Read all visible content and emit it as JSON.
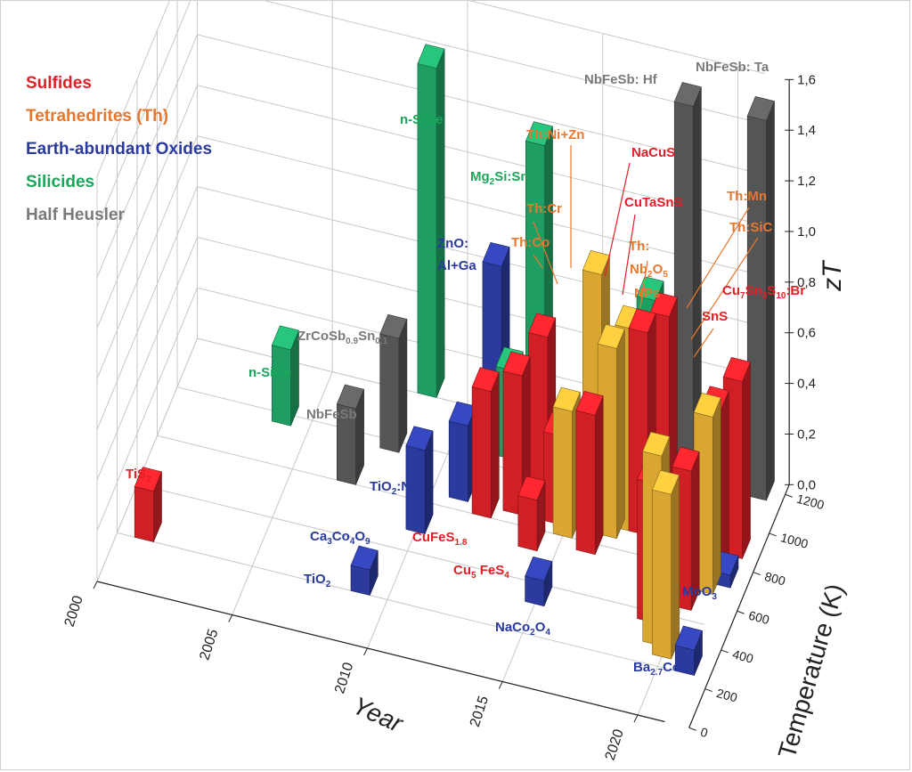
{
  "colors": {
    "sulfides": "#e41e26",
    "tetrahedrites": "#e8772e",
    "oxides": "#2a3aa0",
    "silicides": "#1aa65a",
    "half_heusler": "#7a7a7a",
    "bar_red": "#d11f26",
    "bar_gold": "#d9a632",
    "bar_blue": "#2b3a9c",
    "bar_green": "#1f9e63",
    "bar_gray": "#555555",
    "grid": "#c8c8c8",
    "axis": "#222222"
  },
  "legend": [
    {
      "label": "Sulfides",
      "color": "#e41e26"
    },
    {
      "label": "Tetrahedrites (Th)",
      "color": "#e8772e"
    },
    {
      "label": "Earth-abundant Oxides",
      "color": "#2a3aa0"
    },
    {
      "label": "Silicides",
      "color": "#1aa65a"
    },
    {
      "label": "Half Heusler",
      "color": "#7a7a7a"
    }
  ],
  "chart_data": {
    "type": "bar3d",
    "title": "",
    "xlabel": "Year",
    "ylabel": "Temperature (K)",
    "zlabel": "zT",
    "xlim": [
      2000,
      2021
    ],
    "ylim": [
      0,
      1250
    ],
    "zlim": [
      0,
      1.6
    ],
    "x_ticks": [
      "2000",
      "2005",
      "2010",
      "2015",
      "2020"
    ],
    "y_ticks": [
      "0",
      "200",
      "400",
      "600",
      "800",
      "1000",
      "1200"
    ],
    "z_ticks": [
      "0,0",
      "0,2",
      "0,4",
      "0,6",
      "0,8",
      "1,0",
      "1,2",
      "1,4",
      "1,6"
    ],
    "bars": [
      {
        "year": 2001,
        "temp": 300,
        "zt": 0.2,
        "category": "Sulfides"
      },
      {
        "year": 2004,
        "temp": 1000,
        "zt": 0.3,
        "category": "Silicides"
      },
      {
        "year": 2007,
        "temp": 800,
        "zt": 0.3,
        "category": "Half Heusler"
      },
      {
        "year": 2008,
        "temp": 1000,
        "zt": 0.45,
        "category": "Half Heusler"
      },
      {
        "year": 2008.5,
        "temp": 1300,
        "zt": 1.3,
        "category": "Silicides"
      },
      {
        "year": 2009,
        "temp": 300,
        "zt": 0.1,
        "category": "Earth-abundant Oxides"
      },
      {
        "year": 2010,
        "temp": 650,
        "zt": 0.33,
        "category": "Earth-abundant Oxides"
      },
      {
        "year": 2011,
        "temp": 850,
        "zt": 0.3,
        "category": "Earth-abundant Oxides"
      },
      {
        "year": 2011.5,
        "temp": 1100,
        "zt": 0.75,
        "category": "Earth-abundant Oxides"
      },
      {
        "year": 2012,
        "temp": 1100,
        "zt": 0.35,
        "category": "Silicides"
      },
      {
        "year": 2012.5,
        "temp": 1300,
        "zt": 1.1,
        "category": "Silicides"
      },
      {
        "year": 2012,
        "temp": 800,
        "zt": 0.5,
        "category": "Sulfides"
      },
      {
        "year": 2013,
        "temp": 850,
        "zt": 0.55,
        "category": "Sulfides"
      },
      {
        "year": 2013.5,
        "temp": 1000,
        "zt": 0.6,
        "category": "Sulfides"
      },
      {
        "year": 2014,
        "temp": 700,
        "zt": 0.2,
        "category": "Sulfides"
      },
      {
        "year": 2014.5,
        "temp": 850,
        "zt": 0.35,
        "category": "Sulfides"
      },
      {
        "year": 2015,
        "temp": 450,
        "zt": 0.1,
        "category": "Earth-abundant Oxides"
      },
      {
        "year": 2015,
        "temp": 800,
        "zt": 0.5,
        "category": "Tetrahedrites (Th)"
      },
      {
        "year": 2015.5,
        "temp": 1000,
        "zt": 0.9,
        "category": "Tetrahedrites (Th)"
      },
      {
        "year": 2016,
        "temp": 750,
        "zt": 0.55,
        "category": "Sulfides"
      },
      {
        "year": 2016.5,
        "temp": 850,
        "zt": 0.75,
        "category": "Tetrahedrites (Th)"
      },
      {
        "year": 2017,
        "temp": 900,
        "zt": 0.8,
        "category": "Tetrahedrites (Th)"
      },
      {
        "year": 2017.5,
        "temp": 1000,
        "zt": 0.85,
        "category": "Silicides"
      },
      {
        "year": 2017.5,
        "temp": 900,
        "zt": 0.8,
        "category": "Sulfides"
      },
      {
        "year": 2018,
        "temp": 1000,
        "zt": 0.8,
        "category": "Sulfides"
      },
      {
        "year": 2018,
        "temp": 1300,
        "zt": 1.4,
        "category": "Half Heusler"
      },
      {
        "year": 2019,
        "temp": 500,
        "zt": 0.55,
        "category": "Sulfides"
      },
      {
        "year": 2019.5,
        "temp": 400,
        "zt": 0.75,
        "category": "Tetrahedrites (Th)"
      },
      {
        "year": 2020,
        "temp": 350,
        "zt": 0.65,
        "category": "Tetrahedrites (Th)"
      },
      {
        "year": 2020,
        "temp": 600,
        "zt": 0.55,
        "category": "Sulfides"
      },
      {
        "year": 2020.5,
        "temp": 700,
        "zt": 0.7,
        "category": "Tetrahedrites (Th)"
      },
      {
        "year": 2020.5,
        "temp": 800,
        "zt": 0.65,
        "category": "Sulfides"
      },
      {
        "year": 2021,
        "temp": 1200,
        "zt": 1.5,
        "category": "Half Heusler"
      },
      {
        "year": 2021,
        "temp": 300,
        "zt": 0.1,
        "category": "Earth-abundant Oxides"
      },
      {
        "year": 2021,
        "temp": 750,
        "zt": 0.05,
        "category": "Earth-abundant Oxides"
      },
      {
        "year": 2021,
        "temp": 900,
        "zt": 0.7,
        "category": "Sulfides"
      }
    ],
    "annotations": [
      {
        "text": "TiS",
        "sub": "2",
        "color": "#e41e26"
      },
      {
        "text": "n-SiGe",
        "color": "#1aa65a"
      },
      {
        "text": "NbFeSb",
        "color": "#7a7a7a"
      },
      {
        "text": "ZrCoSb",
        "sub": "0.9",
        "text2": "Sn",
        "sub2": "0.1",
        "color": "#7a7a7a"
      },
      {
        "text": "TiO",
        "sub": "2",
        "text2": ":Na",
        "color": "#2a3aa0"
      },
      {
        "text": "Ca",
        "sub": "3",
        "text2": "Co",
        "sub2": "4",
        "text3": "O",
        "sub3": "9",
        "color": "#2a3aa0"
      },
      {
        "text": "TiO",
        "sub": "2",
        "color": "#2a3aa0"
      },
      {
        "text": "n-SiGe",
        "color": "#1aa65a"
      },
      {
        "text": "Mg",
        "sub": "2",
        "text2": "Si:Sn",
        "color": "#1aa65a"
      },
      {
        "text": "ZnO:",
        "color": "#2a3aa0"
      },
      {
        "text": "Al+Ga",
        "color": "#2a3aa0"
      },
      {
        "text": "Th:Co",
        "color": "#e8772e"
      },
      {
        "text": "Th:Cr",
        "color": "#e8772e"
      },
      {
        "text": "Th:Ni+Zn",
        "color": "#e8772e"
      },
      {
        "text": "NbFeSb: Hf",
        "color": "#7a7a7a"
      },
      {
        "text": "NbFeSb: Ta",
        "color": "#7a7a7a"
      },
      {
        "text": "NaCuS",
        "color": "#e41e26"
      },
      {
        "text": "CuTaSnS",
        "color": "#e41e26"
      },
      {
        "text": "Th:",
        "color": "#e8772e"
      },
      {
        "text": "Nb",
        "sub": "2",
        "text2": "O",
        "sub2": "5",
        "color": "#e8772e"
      },
      {
        "text": "NPs",
        "color": "#e8772e"
      },
      {
        "text": "Th:Mn",
        "color": "#e8772e"
      },
      {
        "text": "Th:SiC",
        "color": "#e8772e"
      },
      {
        "text": "Cu",
        "sub": "7",
        "text2": "Sn",
        "sub2": "3",
        "text3": "S",
        "sub3": "10",
        "text4": ":Br",
        "color": "#e41e26"
      },
      {
        "text": "SnS",
        "color": "#e41e26"
      },
      {
        "text": "CuFeS",
        "sub": "1.8",
        "color": "#e41e26"
      },
      {
        "text": "Cu",
        "sub": "5",
        "text2": " FeS",
        "sub2": "4",
        "color": "#e41e26"
      },
      {
        "text": "NaCo",
        "sub": "2",
        "text2": "O",
        "sub2": "4",
        "color": "#2a3aa0"
      },
      {
        "text": "MoO",
        "sub": "3",
        "color": "#2a3aa0"
      },
      {
        "text": "Ba",
        "sub": "2.7",
        "text2": "CoO",
        "color": "#2a3aa0"
      }
    ]
  }
}
